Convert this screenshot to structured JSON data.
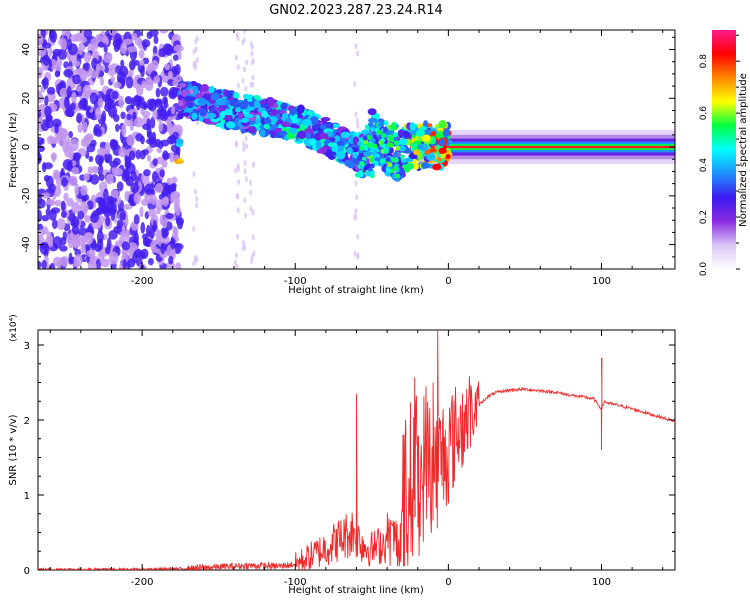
{
  "title": "GN02.2023.287.23.24.R14",
  "colors": {
    "snr_line": "#ee2a2a",
    "cmap": [
      "#ffffff",
      "#d9c4f5",
      "#8a2be2",
      "#3a1cf0",
      "#1e90ff",
      "#00ffff",
      "#00ff40",
      "#ffff00",
      "#ff8800",
      "#ff0000",
      "#ff1a8c"
    ]
  },
  "chart_data": [
    {
      "type": "heatmap",
      "title": "",
      "xlabel": "Height of straight line (km)",
      "ylabel": "Frequency (Hz)",
      "xlim": [
        -268,
        148
      ],
      "ylim": [
        -50,
        48
      ],
      "xticks": [
        -200,
        -100,
        0,
        100
      ],
      "yticks": [
        -40,
        -20,
        0,
        20,
        40
      ],
      "colorbar": {
        "label": "Normalized spectral amplitude",
        "range": [
          0,
          0.92
        ],
        "ticks": [
          "0.0",
          "0.2",
          "0.4",
          "0.6",
          "0.8"
        ],
        "tick_values": [
          0,
          0.2,
          0.4,
          0.6,
          0.8
        ]
      },
      "noise_region": {
        "x_range": [
          -268,
          -175
        ],
        "level": 0.12
      },
      "signal_track": [
        {
          "x": -175,
          "y": 20,
          "amp": 0.35
        },
        {
          "x": -150,
          "y": 16,
          "amp": 0.45
        },
        {
          "x": -125,
          "y": 13,
          "amp": 0.45
        },
        {
          "x": -100,
          "y": 10,
          "amp": 0.5
        },
        {
          "x": -75,
          "y": 3,
          "amp": 0.45
        },
        {
          "x": -55,
          "y": -4,
          "amp": 0.5
        },
        {
          "x": -50,
          "y": 6,
          "amp": 0.45
        },
        {
          "x": -35,
          "y": -5,
          "amp": 0.4
        },
        {
          "x": -25,
          "y": 0,
          "amp": 0.6
        },
        {
          "x": -10,
          "y": 1,
          "amp": 0.75
        },
        {
          "x": 0,
          "y": 0,
          "amp": 0.85
        },
        {
          "x": 50,
          "y": 0,
          "amp": 0.88
        },
        {
          "x": 100,
          "y": 0,
          "amp": 0.85
        },
        {
          "x": 148,
          "y": 0,
          "amp": 0.8
        }
      ]
    },
    {
      "type": "line",
      "title": "",
      "xlabel": "Height of straight line (km)",
      "ylabel": "SNR (10 * v/v)",
      "multiplier": "(x10⁴)",
      "xlim": [
        -268,
        148
      ],
      "ylim": [
        0,
        3.2
      ],
      "xticks": [
        -200,
        -100,
        0,
        100
      ],
      "yticks": [
        0,
        1,
        2,
        3
      ],
      "series": [
        {
          "x": [
            -268,
            -200,
            -170,
            -150,
            -130,
            -110,
            -100,
            -90,
            -80,
            -70,
            -62,
            -55,
            -50,
            -40,
            -32,
            -28,
            -22,
            -18,
            -15,
            -10,
            -5,
            -2,
            0,
            5,
            10,
            15,
            20,
            25,
            30,
            40,
            50,
            60,
            70,
            80,
            90,
            95,
            98,
            100,
            102,
            105,
            110,
            120,
            130,
            140,
            148
          ],
          "y": [
            0.01,
            0.01,
            0.02,
            0.04,
            0.06,
            0.05,
            0.08,
            0.18,
            0.3,
            0.42,
            0.52,
            0.32,
            0.28,
            0.38,
            0.35,
            0.7,
            1.3,
            1.0,
            1.5,
            1.2,
            1.4,
            1.5,
            1.55,
            1.75,
            1.9,
            2.05,
            2.2,
            2.3,
            2.36,
            2.4,
            2.41,
            2.39,
            2.37,
            2.33,
            2.3,
            2.28,
            2.2,
            2.15,
            2.25,
            2.22,
            2.2,
            2.15,
            2.09,
            2.03,
            1.98
          ]
        }
      ],
      "spikes": [
        {
          "x": -60,
          "y": 2.35
        },
        {
          "x": -22,
          "y": 2.57
        },
        {
          "x": -10,
          "y": 2.5
        },
        {
          "x": -7,
          "y": 3.2
        },
        {
          "x": -28,
          "y": 2.0
        },
        {
          "x": 100,
          "y": 2.82
        },
        {
          "x": 100,
          "y": 1.6
        }
      ]
    }
  ]
}
